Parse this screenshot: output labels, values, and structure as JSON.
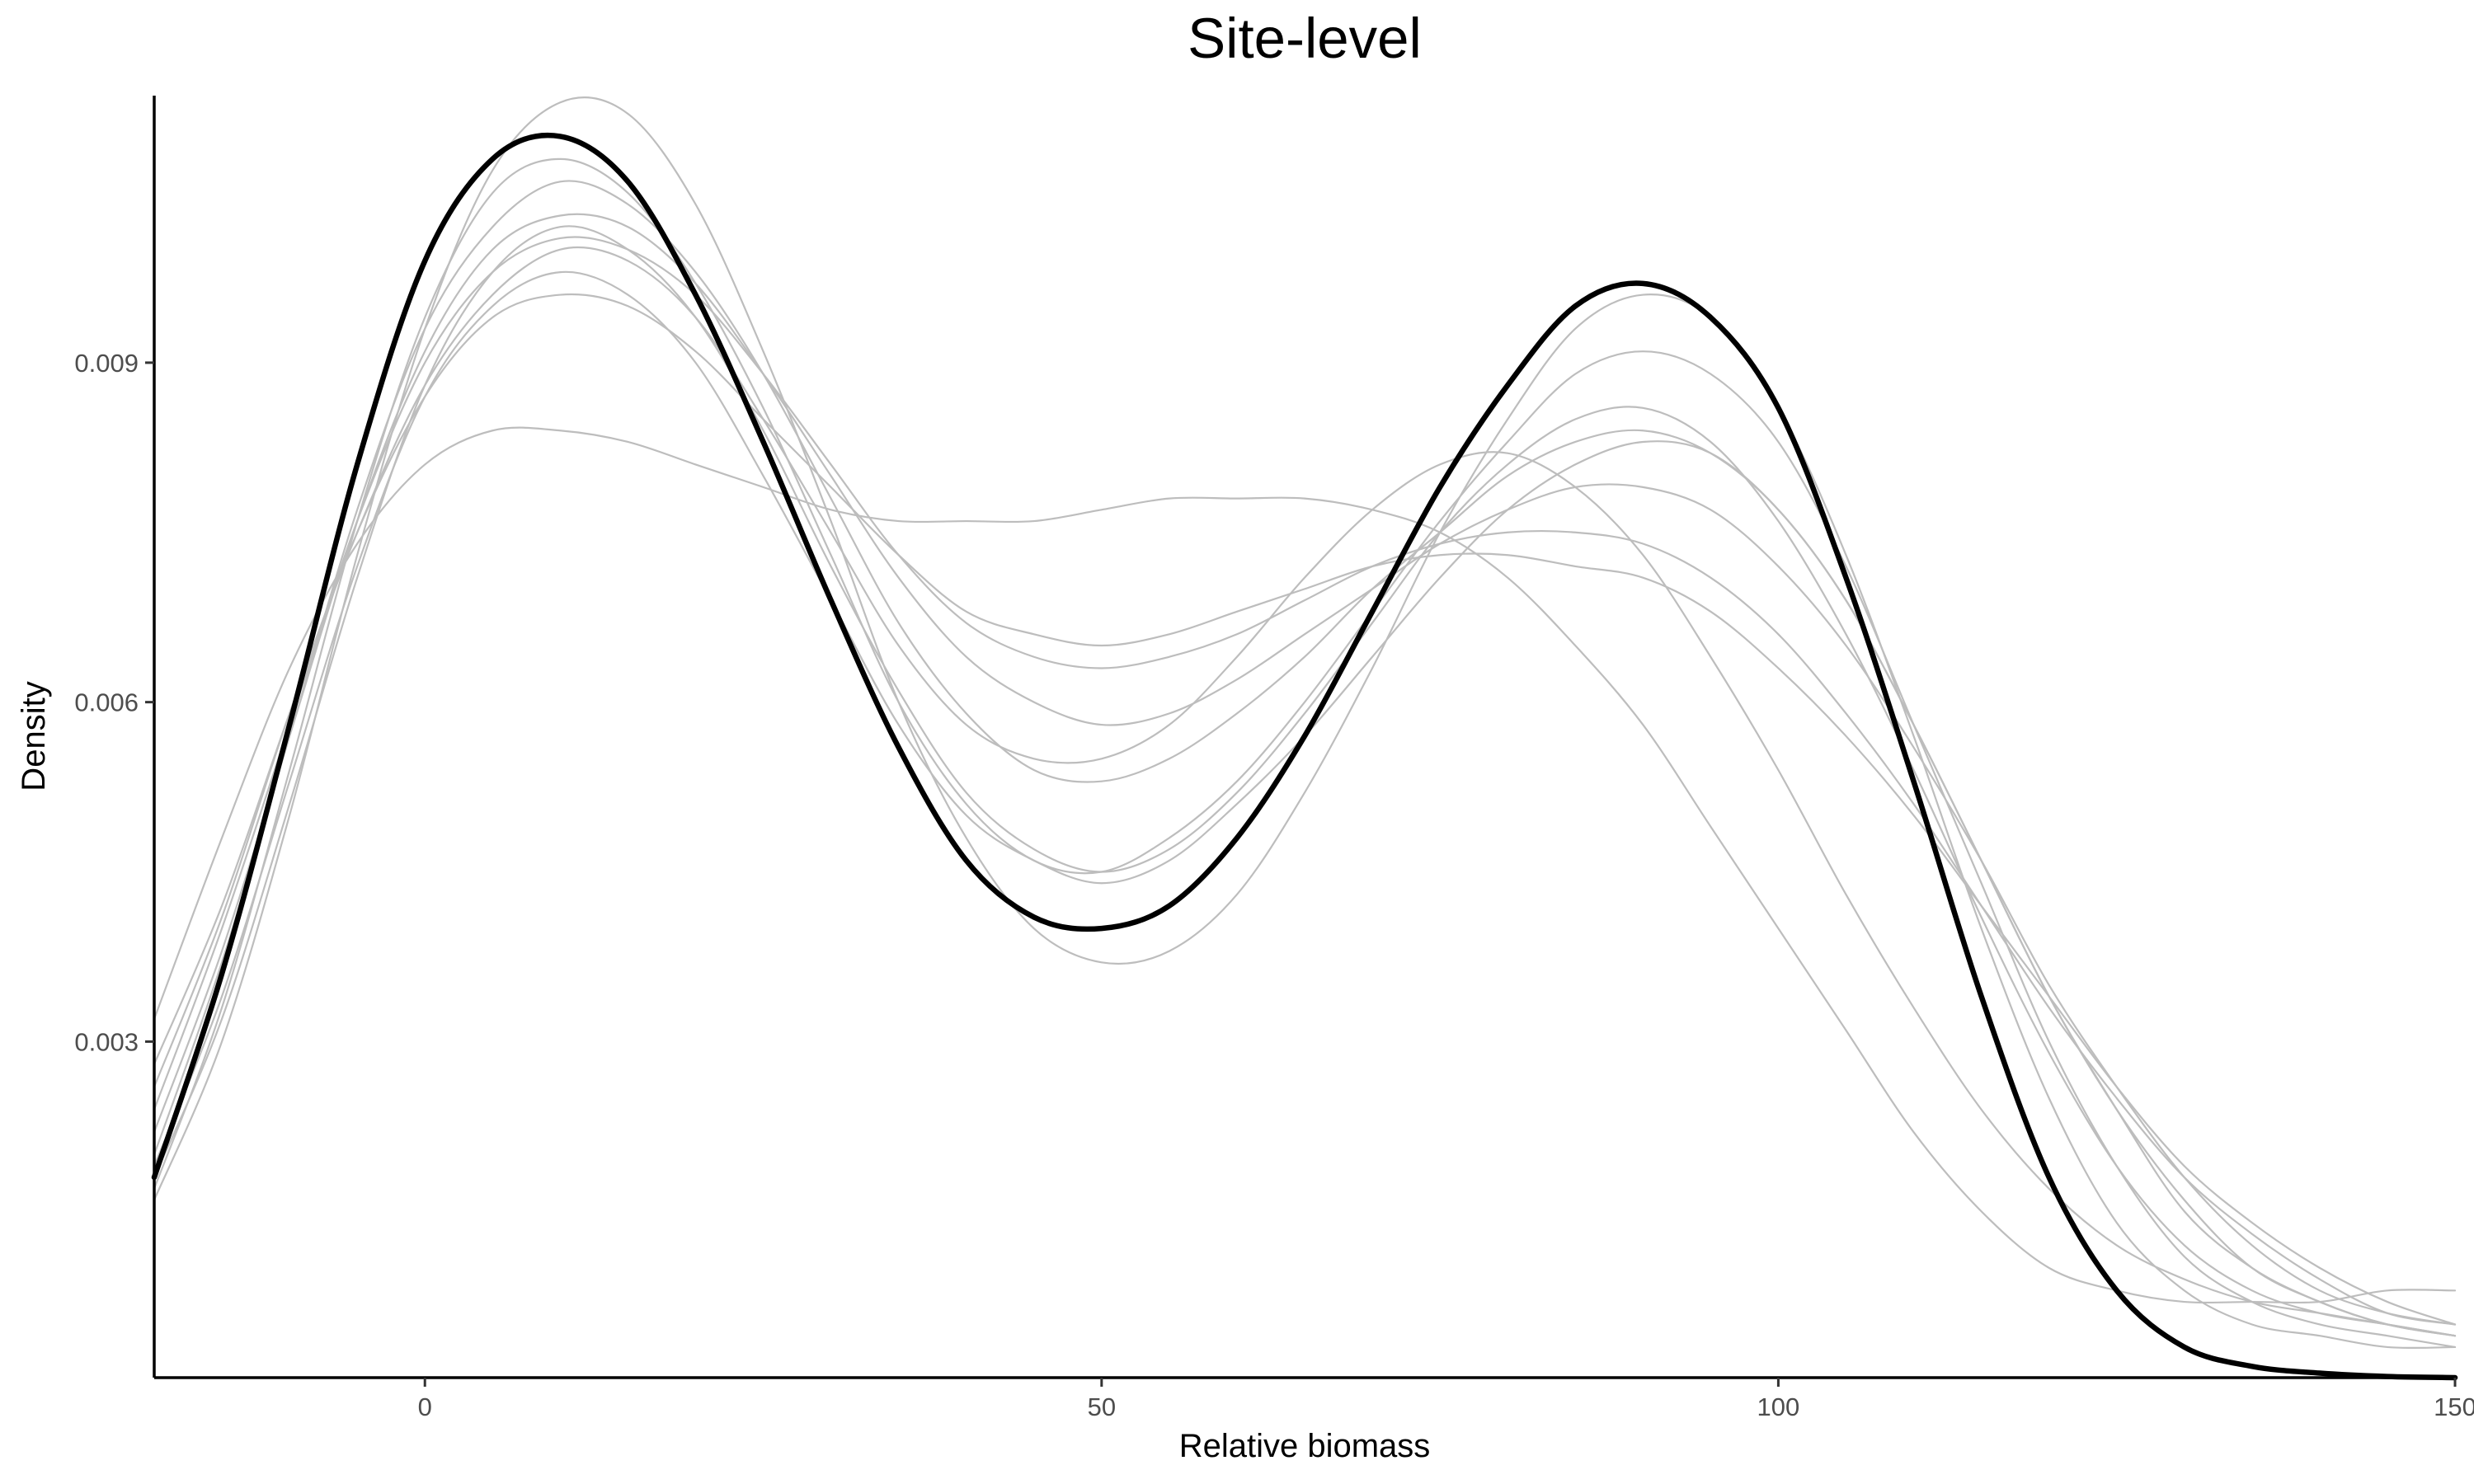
{
  "chart_data": {
    "type": "line",
    "title": "Site-level",
    "xlabel": "Relative biomass",
    "ylabel": "Density",
    "xlim": [
      -20,
      150
    ],
    "ylim": [
      3e-05,
      0.01136
    ],
    "x_ticks": [
      0,
      50,
      100,
      150
    ],
    "x_tick_labels": [
      "0",
      "50",
      "100",
      "150"
    ],
    "y_ticks": [
      0.003,
      0.006,
      0.009
    ],
    "y_tick_labels": [
      "0.003",
      "0.006",
      "0.009"
    ],
    "grid": false,
    "legend": "none",
    "colors": {
      "overall": "#000000",
      "replicate": "#bdbdbd"
    },
    "x": [
      -20,
      -15,
      -10,
      -5,
      0,
      5,
      10,
      15,
      20,
      25,
      30,
      35,
      40,
      45,
      50,
      55,
      60,
      65,
      70,
      75,
      80,
      85,
      90,
      95,
      100,
      105,
      110,
      115,
      120,
      125,
      130,
      135,
      140,
      145,
      150
    ],
    "series": [
      {
        "role": "overall",
        "values": [
          0.0018,
          0.0036,
          0.0058,
          0.0081,
          0.0099,
          0.0108,
          0.011,
          0.0106,
          0.0096,
          0.0083,
          0.0069,
          0.0056,
          0.0046,
          0.0041,
          0.004,
          0.0042,
          0.0048,
          0.0057,
          0.0068,
          0.0079,
          0.0088,
          0.0095,
          0.0097,
          0.0094,
          0.0086,
          0.0071,
          0.0053,
          0.0034,
          0.0018,
          0.0008,
          0.0003,
          0.00013,
          7e-05,
          4e-05,
          3e-05
        ]
      },
      {
        "role": "replicate",
        "values": [
          0.0016,
          0.003,
          0.005,
          0.0073,
          0.0093,
          0.0107,
          0.0113,
          0.0112,
          0.0104,
          0.0091,
          0.0076,
          0.006,
          0.0048,
          0.004,
          0.0037,
          0.0038,
          0.0043,
          0.0052,
          0.0063,
          0.0075,
          0.0085,
          0.0093,
          0.0096,
          0.0094,
          0.0086,
          0.0073,
          0.0057,
          0.004,
          0.0025,
          0.0014,
          0.0008,
          0.0005,
          0.0004,
          0.0003,
          0.0003
        ]
      },
      {
        "role": "replicate",
        "values": [
          0.0017,
          0.0033,
          0.0054,
          0.0076,
          0.0094,
          0.0105,
          0.0108,
          0.0105,
          0.0097,
          0.0086,
          0.0073,
          0.006,
          0.0051,
          0.0046,
          0.0045,
          0.0048,
          0.0053,
          0.006,
          0.0068,
          0.0076,
          0.0083,
          0.0089,
          0.0091,
          0.0089,
          0.0083,
          0.0072,
          0.0058,
          0.0044,
          0.003,
          0.0019,
          0.0011,
          0.0007,
          0.0005,
          0.0004,
          0.0003
        ]
      },
      {
        "role": "replicate",
        "values": [
          0.002,
          0.0037,
          0.0057,
          0.0077,
          0.0093,
          0.0102,
          0.0106,
          0.0104,
          0.0098,
          0.0089,
          0.0078,
          0.0067,
          0.0059,
          0.0054,
          0.0053,
          0.0055,
          0.0059,
          0.0064,
          0.007,
          0.0075,
          0.008,
          0.0083,
          0.0084,
          0.0082,
          0.0077,
          0.0069,
          0.0058,
          0.0046,
          0.0034,
          0.0024,
          0.0015,
          0.001,
          0.0007,
          0.0005,
          0.0004
        ]
      },
      {
        "role": "replicate",
        "values": [
          0.0022,
          0.0038,
          0.0057,
          0.0076,
          0.0091,
          0.01,
          0.0103,
          0.0102,
          0.0097,
          0.0089,
          0.008,
          0.0071,
          0.0064,
          0.006,
          0.0058,
          0.0059,
          0.0062,
          0.0066,
          0.007,
          0.0074,
          0.0077,
          0.0079,
          0.0079,
          0.0077,
          0.0072,
          0.0065,
          0.0056,
          0.0046,
          0.0035,
          0.0026,
          0.0018,
          0.0012,
          0.0008,
          0.0006,
          0.0005
        ]
      },
      {
        "role": "replicate",
        "values": [
          0.0024,
          0.004,
          0.0058,
          0.0076,
          0.009,
          0.0098,
          0.0101,
          0.01,
          0.0096,
          0.0089,
          0.0081,
          0.0073,
          0.0067,
          0.0064,
          0.0063,
          0.0064,
          0.0066,
          0.0069,
          0.0072,
          0.0074,
          0.0075,
          0.0075,
          0.0074,
          0.0071,
          0.0066,
          0.0059,
          0.0051,
          0.0042,
          0.0033,
          0.0025,
          0.0018,
          0.0013,
          0.0009,
          0.0006,
          0.0005
        ]
      },
      {
        "role": "replicate",
        "values": [
          0.0018,
          0.0032,
          0.0051,
          0.0071,
          0.0088,
          0.0098,
          0.0102,
          0.01,
          0.0094,
          0.0084,
          0.0072,
          0.0061,
          0.0052,
          0.0047,
          0.0045,
          0.0047,
          0.0052,
          0.0059,
          0.0067,
          0.0075,
          0.0081,
          0.0085,
          0.0086,
          0.0083,
          0.0076,
          0.0066,
          0.0054,
          0.0041,
          0.0029,
          0.0019,
          0.0012,
          0.0008,
          0.0006,
          0.0005,
          0.0004
        ]
      },
      {
        "role": "replicate",
        "values": [
          0.0026,
          0.0041,
          0.0059,
          0.0075,
          0.0087,
          0.0094,
          0.0096,
          0.0095,
          0.0091,
          0.0085,
          0.0079,
          0.0073,
          0.0068,
          0.0066,
          0.0065,
          0.0066,
          0.0068,
          0.007,
          0.0072,
          0.0073,
          0.0073,
          0.0072,
          0.0071,
          0.0068,
          0.0063,
          0.0057,
          0.005,
          0.0042,
          0.0034,
          0.0026,
          0.0019,
          0.0014,
          0.001,
          0.0007,
          0.0005
        ]
      },
      {
        "role": "replicate",
        "values": [
          0.0032,
          0.0048,
          0.0063,
          0.0074,
          0.0081,
          0.0084,
          0.0084,
          0.0083,
          0.0081,
          0.0079,
          0.0077,
          0.0076,
          0.0076,
          0.0076,
          0.0077,
          0.0078,
          0.0078,
          0.0078,
          0.0077,
          0.0075,
          0.0071,
          0.0065,
          0.0058,
          0.0049,
          0.004,
          0.0031,
          0.0022,
          0.0015,
          0.001,
          0.0008,
          0.0007,
          0.0007,
          0.0007,
          0.0008,
          0.0008
        ]
      },
      {
        "role": "replicate",
        "values": [
          0.0028,
          0.0042,
          0.0059,
          0.0075,
          0.0088,
          0.0096,
          0.01,
          0.0099,
          0.0094,
          0.0085,
          0.0075,
          0.0065,
          0.0058,
          0.0055,
          0.0055,
          0.0058,
          0.0064,
          0.0071,
          0.0077,
          0.0081,
          0.0082,
          0.0079,
          0.0073,
          0.0064,
          0.0054,
          0.0043,
          0.0033,
          0.0024,
          0.0017,
          0.0012,
          0.0009,
          0.0007,
          0.0006,
          0.0005,
          0.0004
        ]
      },
      {
        "role": "replicate",
        "values": [
          0.0019,
          0.0034,
          0.0053,
          0.0072,
          0.0087,
          0.0095,
          0.0098,
          0.0096,
          0.009,
          0.008,
          0.0069,
          0.0058,
          0.005,
          0.0046,
          0.0044,
          0.0046,
          0.0051,
          0.0057,
          0.0064,
          0.0071,
          0.0077,
          0.0081,
          0.0083,
          0.0082,
          0.0077,
          0.0069,
          0.0058,
          0.0046,
          0.0034,
          0.0024,
          0.0016,
          0.001,
          0.0007,
          0.0005,
          0.0004
        ]
      }
    ]
  }
}
